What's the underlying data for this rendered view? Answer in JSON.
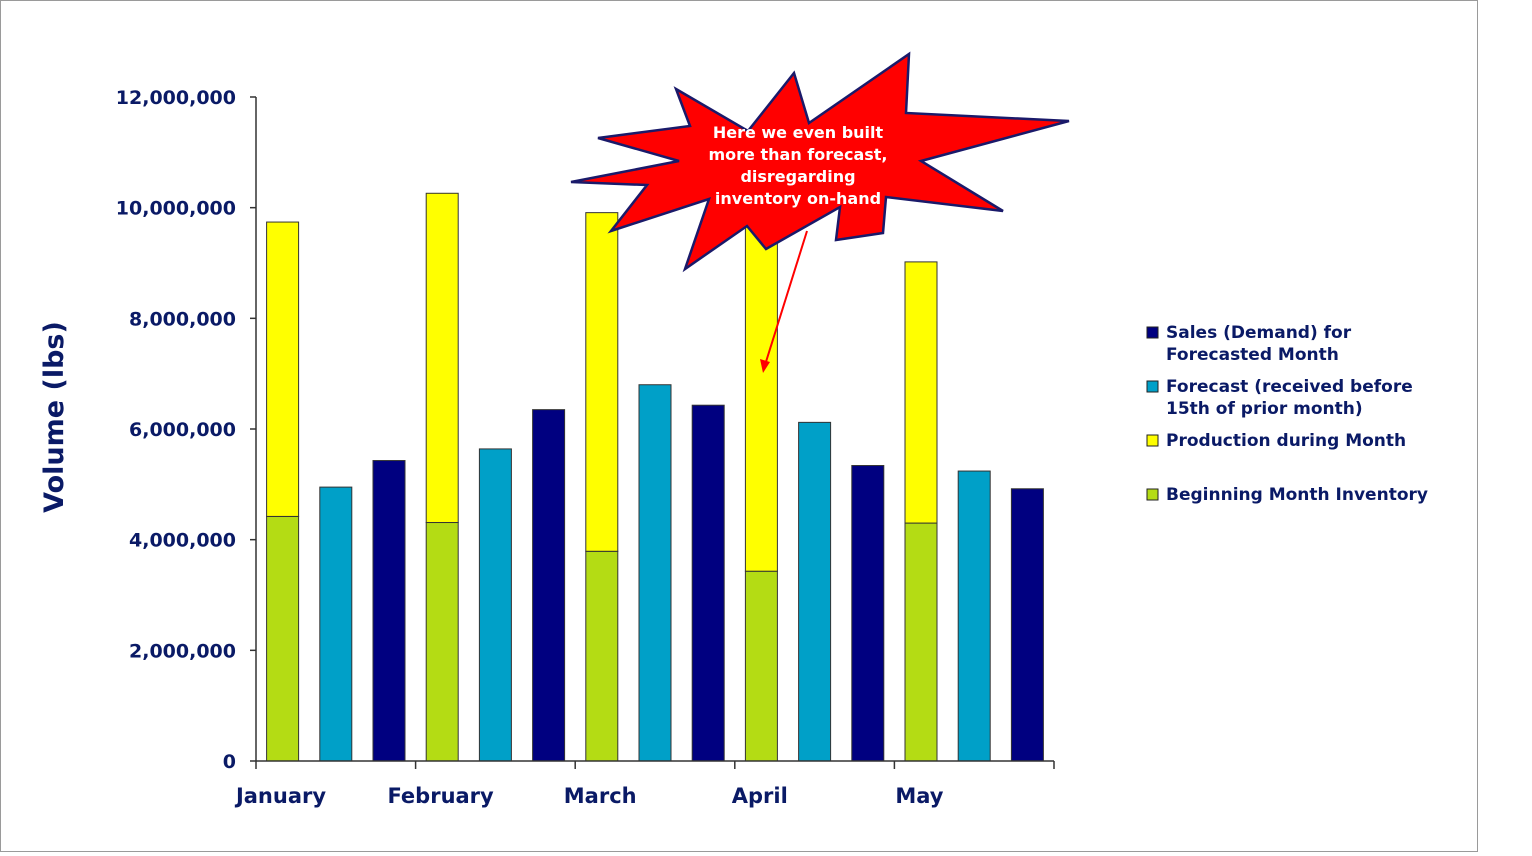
{
  "chart_data": {
    "type": "bar",
    "ylabel": "Volume (lbs)",
    "xlabel": "",
    "ylim": [
      0,
      12000000
    ],
    "yticks": [
      0,
      2000000,
      4000000,
      6000000,
      8000000,
      10000000,
      12000000
    ],
    "ytick_labels": [
      "0",
      "2,000,000",
      "4,000,000",
      "6,000,000",
      "8,000,000",
      "10,000,000",
      "12,000,000"
    ],
    "categories": [
      "January",
      "February",
      "March",
      "April",
      "May"
    ],
    "grid": false,
    "legend_position": "right",
    "series": [
      {
        "name": "Sales (Demand) for Forecasted Month",
        "color": "#000080"
      },
      {
        "name": "Forecast (received before 15th of prior month)",
        "color": "#00a0c8"
      },
      {
        "name": "Production during Month",
        "color": "#ffff00"
      },
      {
        "name": "Beginning Month Inventory",
        "color": "#b4dc14"
      }
    ],
    "bars": [
      {
        "category": "January",
        "inventory": 4420000,
        "production": 5320000
      },
      {
        "category": "January",
        "forecast": 4950000
      },
      {
        "category": "January",
        "sales": 5430000
      },
      {
        "category": "February",
        "inventory": 4310000,
        "production": 5950000
      },
      {
        "category": "February",
        "forecast": 5640000
      },
      {
        "category": "February",
        "sales": 6350000
      },
      {
        "category": "March",
        "inventory": 3790000,
        "production": 6120000
      },
      {
        "category": "March",
        "forecast": 6800000
      },
      {
        "category": "March",
        "sales": 6430000
      },
      {
        "category": "April",
        "inventory": 3430000,
        "production": 6700000
      },
      {
        "category": "April",
        "forecast": 6120000
      },
      {
        "category": "April",
        "sales": 5340000
      },
      {
        "category": "May",
        "inventory": 4300000,
        "production": 4720000
      },
      {
        "category": "May",
        "forecast": 5240000
      },
      {
        "category": "May",
        "sales": 4920000
      }
    ],
    "annotation": {
      "lines": [
        "Here we even built",
        "more than forecast,",
        "disregarding",
        "inventory on-hand"
      ],
      "fill": "#ff0000",
      "target_bar": "April production"
    }
  }
}
